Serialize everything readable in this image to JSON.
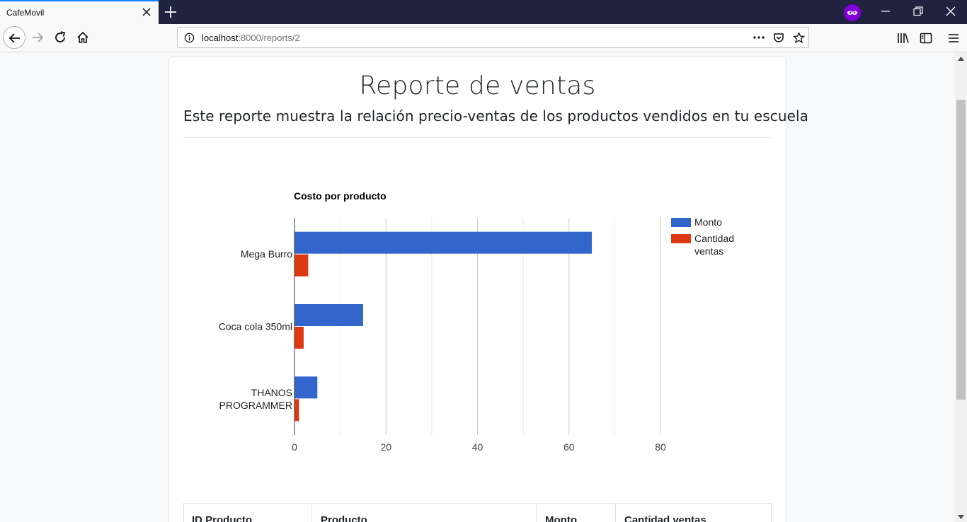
{
  "browser": {
    "tab_title": "CafeMovil",
    "url_host": "localhost",
    "url_path": ":8000/reports/2"
  },
  "page": {
    "title": "Reporte de ventas",
    "subtitle": "Este reporte muestra la relación precio-ventas de los productos vendidos en tu escuela"
  },
  "chart_data": {
    "type": "bar",
    "orientation": "horizontal",
    "title": "Costo por producto",
    "categories": [
      "Mega Burro",
      "Coca cola 350ml",
      "THANOS PROGRAMMER"
    ],
    "category_lines": [
      [
        "Mega Burro"
      ],
      [
        "Coca cola 350ml"
      ],
      [
        "THANOS",
        "PROGRAMMER"
      ]
    ],
    "series": [
      {
        "name": "Monto",
        "values": [
          65,
          15,
          5
        ],
        "color": "#3366cc"
      },
      {
        "name": "Cantidad ventas",
        "values": [
          3,
          2,
          1
        ],
        "color": "#dc3912"
      }
    ],
    "legend_lines": [
      [
        "Monto"
      ],
      [
        "Cantidad",
        "ventas"
      ]
    ],
    "xlim": [
      0,
      80
    ],
    "xticks": [
      0,
      20,
      40,
      60,
      80
    ],
    "grid": true,
    "legend_position": "right"
  },
  "table": {
    "headers": [
      "ID Producto",
      "Producto",
      "Monto",
      "Cantidad ventas"
    ]
  }
}
